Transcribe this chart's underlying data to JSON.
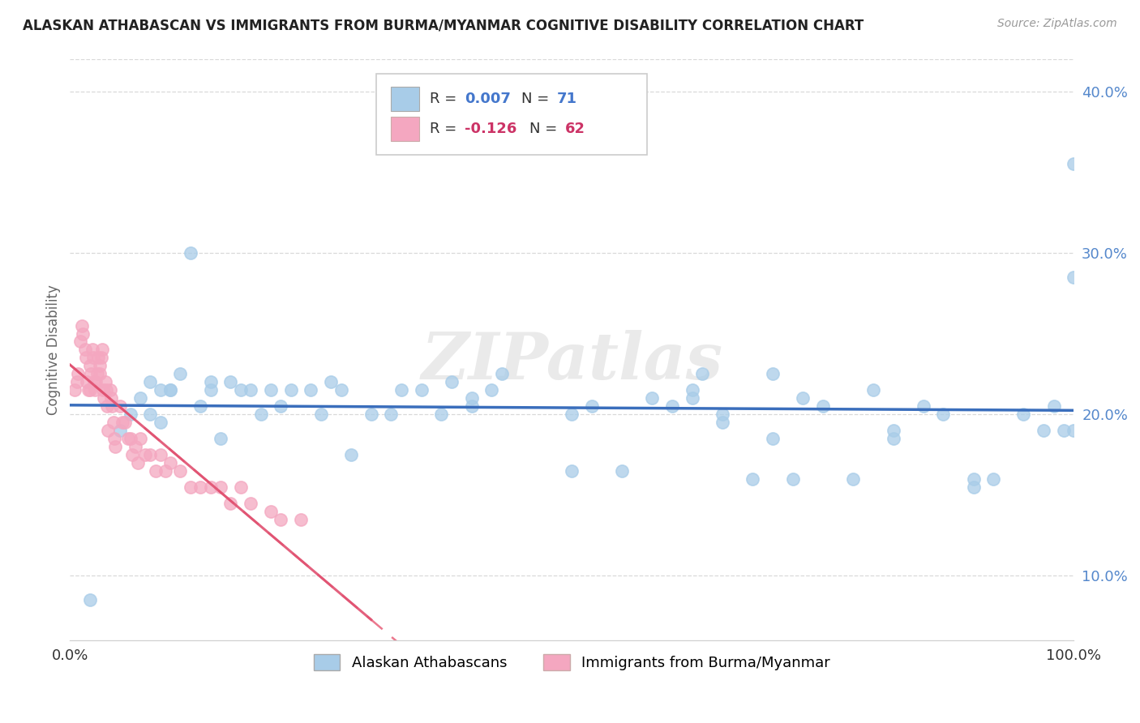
{
  "title": "ALASKAN ATHABASCAN VS IMMIGRANTS FROM BURMA/MYANMAR COGNITIVE DISABILITY CORRELATION CHART",
  "source": "Source: ZipAtlas.com",
  "ylabel": "Cognitive Disability",
  "watermark": "ZIPatlas",
  "legend_blue_r_label": "R = ",
  "legend_blue_r_val": "0.007",
  "legend_blue_n_label": "N = ",
  "legend_blue_n_val": "71",
  "legend_pink_r_label": "R = ",
  "legend_pink_r_val": "-0.126",
  "legend_pink_n_label": "N = ",
  "legend_pink_n_val": "62",
  "legend_label_blue": "Alaskan Athabascans",
  "legend_label_pink": "Immigrants from Burma/Myanmar",
  "blue_color": "#a8cce8",
  "pink_color": "#f4a7c0",
  "blue_line_color": "#3a6ebc",
  "pink_line_color": "#e8607a",
  "pink_solid_color": "#e05070",
  "background_color": "#ffffff",
  "grid_color": "#d0d0d0",
  "ytick_color": "#5588cc",
  "xlim": [
    0.0,
    1.0
  ],
  "ylim": [
    0.06,
    0.42
  ],
  "blue_x": [
    0.02,
    0.05,
    0.06,
    0.07,
    0.08,
    0.09,
    0.1,
    0.11,
    0.12,
    0.13,
    0.14,
    0.15,
    0.16,
    0.17,
    0.18,
    0.19,
    0.2,
    0.21,
    0.22,
    0.24,
    0.25,
    0.26,
    0.27,
    0.28,
    0.3,
    0.32,
    0.33,
    0.35,
    0.37,
    0.38,
    0.4,
    0.42,
    0.43,
    0.5,
    0.52,
    0.55,
    0.58,
    0.6,
    0.62,
    0.63,
    0.65,
    0.68,
    0.7,
    0.72,
    0.73,
    0.75,
    0.78,
    0.8,
    0.82,
    0.85,
    0.87,
    0.9,
    0.92,
    0.95,
    0.97,
    0.98,
    0.99,
    1.0,
    1.0,
    1.0,
    0.08,
    0.09,
    0.1,
    0.14,
    0.4,
    0.5,
    0.62,
    0.7,
    0.82,
    0.9,
    0.65
  ],
  "blue_y": [
    0.085,
    0.19,
    0.2,
    0.21,
    0.22,
    0.195,
    0.215,
    0.225,
    0.3,
    0.205,
    0.215,
    0.185,
    0.22,
    0.215,
    0.215,
    0.2,
    0.215,
    0.205,
    0.215,
    0.215,
    0.2,
    0.22,
    0.215,
    0.175,
    0.2,
    0.2,
    0.215,
    0.215,
    0.2,
    0.22,
    0.205,
    0.215,
    0.225,
    0.2,
    0.205,
    0.165,
    0.21,
    0.205,
    0.215,
    0.225,
    0.2,
    0.16,
    0.225,
    0.16,
    0.21,
    0.205,
    0.16,
    0.215,
    0.19,
    0.205,
    0.2,
    0.16,
    0.16,
    0.2,
    0.19,
    0.205,
    0.19,
    0.19,
    0.285,
    0.355,
    0.2,
    0.215,
    0.215,
    0.22,
    0.21,
    0.165,
    0.21,
    0.185,
    0.185,
    0.155,
    0.195
  ],
  "pink_x": [
    0.005,
    0.007,
    0.008,
    0.01,
    0.012,
    0.013,
    0.015,
    0.016,
    0.017,
    0.018,
    0.02,
    0.02,
    0.021,
    0.022,
    0.023,
    0.024,
    0.025,
    0.026,
    0.027,
    0.028,
    0.03,
    0.03,
    0.031,
    0.032,
    0.033,
    0.034,
    0.035,
    0.036,
    0.037,
    0.038,
    0.04,
    0.041,
    0.042,
    0.043,
    0.044,
    0.045,
    0.05,
    0.052,
    0.055,
    0.058,
    0.06,
    0.062,
    0.065,
    0.068,
    0.07,
    0.075,
    0.08,
    0.085,
    0.09,
    0.095,
    0.1,
    0.11,
    0.12,
    0.13,
    0.14,
    0.15,
    0.16,
    0.17,
    0.18,
    0.2,
    0.21,
    0.23
  ],
  "pink_y": [
    0.215,
    0.22,
    0.225,
    0.245,
    0.255,
    0.25,
    0.24,
    0.235,
    0.22,
    0.215,
    0.215,
    0.23,
    0.225,
    0.24,
    0.235,
    0.22,
    0.215,
    0.22,
    0.225,
    0.235,
    0.225,
    0.23,
    0.235,
    0.24,
    0.215,
    0.21,
    0.22,
    0.215,
    0.205,
    0.19,
    0.215,
    0.21,
    0.205,
    0.195,
    0.185,
    0.18,
    0.205,
    0.195,
    0.195,
    0.185,
    0.185,
    0.175,
    0.18,
    0.17,
    0.185,
    0.175,
    0.175,
    0.165,
    0.175,
    0.165,
    0.17,
    0.165,
    0.155,
    0.155,
    0.155,
    0.155,
    0.145,
    0.155,
    0.145,
    0.14,
    0.135,
    0.135
  ],
  "yticks": [
    0.1,
    0.2,
    0.3,
    0.4
  ],
  "ytick_labels": [
    "10.0%",
    "20.0%",
    "30.0%",
    "40.0%"
  ],
  "xticks": [
    0.0,
    0.25,
    0.5,
    0.75,
    1.0
  ],
  "xtick_labels": [
    "0.0%",
    "",
    "",
    "",
    "100.0%"
  ]
}
